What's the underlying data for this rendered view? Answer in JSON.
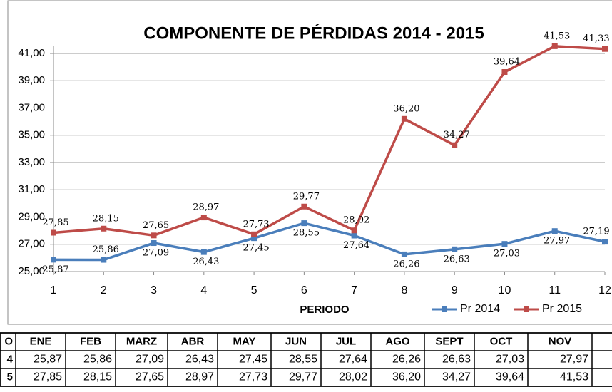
{
  "chart_data": {
    "type": "line",
    "title": "COMPONENTE  DE  PÉRDIDAS   2014 - 2015",
    "x_label": "PERIODO",
    "x": [
      1,
      2,
      3,
      4,
      5,
      6,
      7,
      8,
      9,
      10,
      11,
      12
    ],
    "xlim": [
      1,
      12
    ],
    "xticks": [
      1,
      2,
      3,
      4,
      5,
      6,
      7,
      8,
      9,
      10,
      11,
      12
    ],
    "ylim": [
      25,
      41
    ],
    "yticks": [
      {
        "value": 25,
        "label": "25,00"
      },
      {
        "value": 27,
        "label": "27,00"
      },
      {
        "value": 29,
        "label": "29,00"
      },
      {
        "value": 31,
        "label": "31,00"
      },
      {
        "value": 33,
        "label": "33,00"
      },
      {
        "value": 35,
        "label": "35,00"
      },
      {
        "value": 37,
        "label": "37,00"
      },
      {
        "value": 39,
        "label": "39,00"
      },
      {
        "value": 41,
        "label": "41,00"
      }
    ],
    "grid": true,
    "legend": "bottom-right",
    "series": [
      {
        "name": "Pr  2014",
        "color": "#4a7ebb",
        "values": [
          25.87,
          25.86,
          27.09,
          26.43,
          27.45,
          28.55,
          27.64,
          26.26,
          26.63,
          27.03,
          27.97,
          27.19
        ],
        "value_labels": [
          "25,87",
          "25,86",
          "27,09",
          "26,43",
          "27,45",
          "28,55",
          "27,64",
          "26,26",
          "26,63",
          "27,03",
          "27,97",
          "27,19"
        ]
      },
      {
        "name": "Pr  2015",
        "color": "#be4b48",
        "values": [
          27.85,
          28.15,
          27.65,
          28.97,
          27.73,
          29.77,
          28.02,
          36.2,
          34.27,
          39.64,
          41.53,
          41.33
        ],
        "value_labels": [
          "27,85",
          "28,15",
          "27,65",
          "28,97",
          "27,73",
          "29,77",
          "28,02",
          "36,20",
          "34,27",
          "39,64",
          "41,53",
          "41,33"
        ]
      }
    ]
  },
  "table": {
    "header": [
      "O",
      "ENE",
      "FEB",
      "MARZ",
      "ABR",
      "MAY",
      "JUN",
      "JUL",
      "AGO",
      "SEPT",
      "OCT",
      "NOV"
    ],
    "rows": [
      [
        "4",
        "25,87",
        "25,86",
        "27,09",
        "26,43",
        "27,45",
        "28,55",
        "27,64",
        "26,26",
        "26,63",
        "27,03",
        "27,97"
      ],
      [
        "5",
        "27,85",
        "28,15",
        "27,65",
        "28,97",
        "27,73",
        "29,77",
        "28,02",
        "36,20",
        "34,27",
        "39,64",
        "41,53"
      ]
    ]
  }
}
